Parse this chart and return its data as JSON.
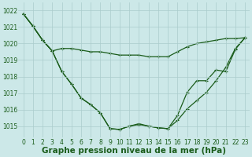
{
  "title": "Graphe pression niveau de la mer (hPa)",
  "background_color": "#cce8e8",
  "grid_color": "#aacccc",
  "line_color": "#1a5c1a",
  "x_labels": [
    "0",
    "1",
    "2",
    "3",
    "4",
    "5",
    "6",
    "7",
    "8",
    "9",
    "10",
    "11",
    "12",
    "13",
    "14",
    "15",
    "16",
    "17",
    "18",
    "19",
    "20",
    "21",
    "22",
    "23"
  ],
  "ylim": [
    1014.3,
    1022.5
  ],
  "yticks": [
    1015,
    1016,
    1017,
    1018,
    1019,
    1020,
    1021,
    1022
  ],
  "series1": [
    1021.8,
    1021.05,
    1020.2,
    1019.55,
    1019.7,
    1019.7,
    1019.6,
    1019.5,
    1019.5,
    1019.4,
    1019.3,
    1019.3,
    1019.3,
    1019.2,
    1019.2,
    1019.2,
    1019.5,
    1019.8,
    1020.0,
    1020.1,
    1020.2,
    1020.3,
    1020.3,
    1020.35
  ],
  "series2": [
    1021.8,
    1021.05,
    1020.2,
    1019.55,
    1018.3,
    1017.55,
    1016.7,
    1016.3,
    1015.8,
    1014.85,
    1014.8,
    1015.0,
    1015.1,
    1015.0,
    1014.9,
    1014.85,
    1015.35,
    1016.05,
    1016.55,
    1017.05,
    1017.75,
    1018.55,
    1019.7,
    1020.35
  ],
  "series3": [
    1021.8,
    1021.05,
    1020.2,
    1019.55,
    1018.3,
    1017.55,
    1016.7,
    1016.3,
    1015.8,
    1014.85,
    1014.8,
    1015.0,
    1015.15,
    1015.0,
    1014.9,
    1014.85,
    1015.65,
    1017.05,
    1017.75,
    1017.75,
    1018.4,
    1018.3,
    1019.65,
    1020.35
  ],
  "marker_size": 2.0,
  "linewidth": 0.9,
  "title_fontsize": 7.5,
  "tick_fontsize": 5.5
}
